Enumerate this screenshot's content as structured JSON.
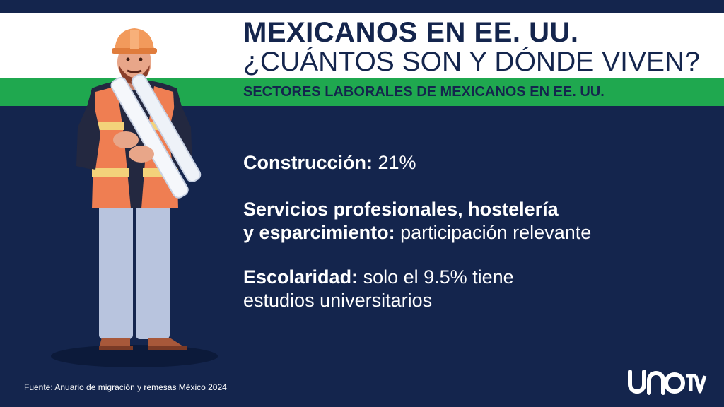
{
  "header": {
    "title_line1": "MEXICANOS EN EE. UU.",
    "title_line2": "¿CUÁNTOS SON Y DÓNDE VIVEN?",
    "subtitle": "SECTORES LABORALES DE MEXICANOS EN EE. UU."
  },
  "items": [
    {
      "label": "Construcción:",
      "text": " 21%"
    },
    {
      "label_line1": "Servicios profesionales, hostelería",
      "label_line2": "y esparcimiento:",
      "text": " participación relevante"
    },
    {
      "label": "Escolaridad:",
      "text_line1": " solo el 9.5% tiene",
      "text_line2": "estudios universitarios"
    }
  ],
  "footer": {
    "source": "Fuente: Anuario de migración y remesas México 2024",
    "logo_icon": "unotv-logo-icon"
  },
  "illustration": {
    "icon": "construction-worker-icon"
  },
  "colors": {
    "navy": "#14254d",
    "green": "#1fa84f",
    "white": "#ffffff",
    "vest_orange": "#ef7e52"
  }
}
